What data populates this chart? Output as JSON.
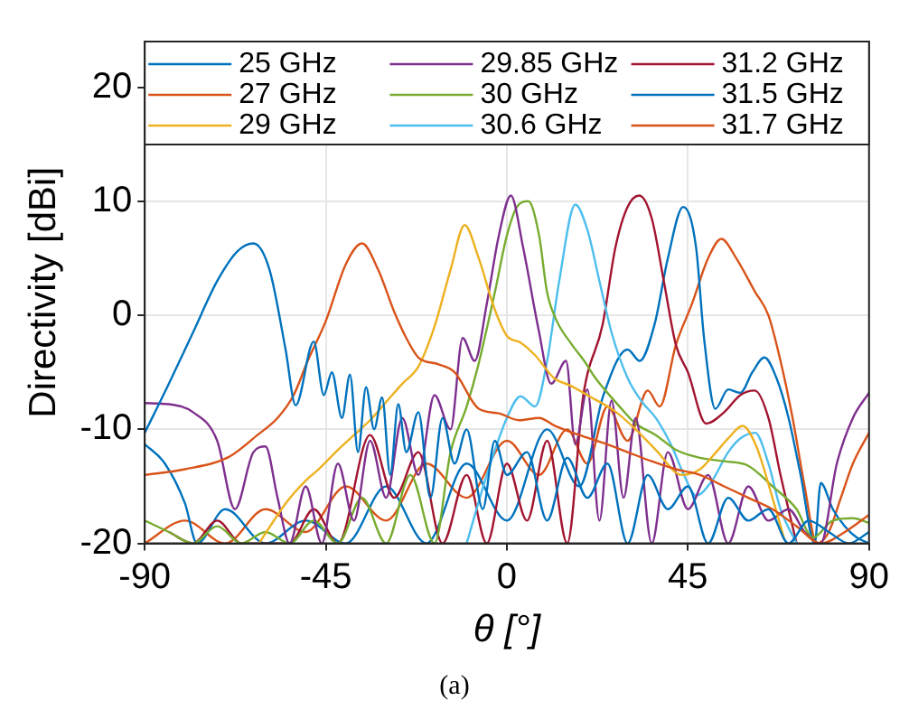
{
  "chart_data": {
    "type": "line",
    "xlabel": "θ [°]",
    "ylabel": "Directivity [dBi]",
    "annotations": [
      "(a)"
    ],
    "xlim": [
      -90,
      90
    ],
    "xticks": [
      -90,
      -45,
      0,
      45,
      90
    ],
    "ylim": [
      -20,
      24
    ],
    "yticks": [
      -20,
      -10,
      0,
      10,
      20
    ],
    "grid": true,
    "legend": "top",
    "marker": "none",
    "line_style": "solid",
    "series": [
      {
        "name": "25 GHz",
        "color": "#0072bd",
        "x": [
          -90,
          -84,
          -78,
          -72,
          -67,
          -63,
          -59,
          -55,
          -52.5,
          -48,
          -45.5,
          -43.5,
          -41,
          -39,
          -37,
          -35,
          -33,
          -31,
          -29,
          -27,
          -25,
          -22,
          -19,
          -16,
          -13,
          -10,
          -6,
          -3,
          0,
          5,
          10,
          15,
          20,
          25,
          30,
          35,
          40,
          45,
          50,
          55,
          60,
          65,
          70,
          75,
          80,
          85,
          90
        ],
        "values": [
          -10.3,
          -6,
          -1.5,
          3,
          5.6,
          6.3,
          4,
          -3,
          -7.9,
          -2.3,
          -7,
          -5,
          -9,
          -5.2,
          -12,
          -6.3,
          -10,
          -7.2,
          -14,
          -7.8,
          -12,
          -8.5,
          -16,
          -9,
          -13,
          -10,
          -17,
          -11,
          -14,
          -12,
          -18,
          -12.5,
          -16,
          -13,
          -20,
          -14,
          -17,
          -15,
          -20,
          -16,
          -18,
          -17,
          -20,
          -18,
          -19,
          -20,
          -19
        ]
      },
      {
        "name": "27 GHz",
        "color": "#d95319",
        "x": [
          -90,
          -80,
          -69,
          -62,
          -57,
          -53,
          -49.5,
          -45,
          -40,
          -36,
          -32,
          -28,
          -25,
          -22,
          -17,
          -13,
          -7,
          -2,
          3,
          8,
          12,
          18,
          24,
          30,
          36,
          42,
          48,
          54,
          60,
          66,
          72,
          78,
          84,
          90
        ],
        "values": [
          -14,
          -13.5,
          -12.4,
          -10.5,
          -9,
          -7,
          -4,
          -0.5,
          4.5,
          6.3,
          4,
          0.3,
          -2,
          -3.7,
          -4.3,
          -5,
          -8.2,
          -8.6,
          -9.2,
          -9,
          -9.7,
          -10.5,
          -11.2,
          -12,
          -12.8,
          -13.5,
          -14,
          -15,
          -16,
          -17,
          -18.5,
          -20,
          -19,
          -17.5
        ]
      },
      {
        "name": "29 GHz",
        "color": "#edb120",
        "x": [
          -61.6,
          -55,
          -50,
          -46.5,
          -42,
          -38,
          -34,
          -30,
          -26,
          -22,
          -18,
          -14,
          -10.5,
          -7,
          -3,
          0,
          3.4,
          7,
          11.7,
          16,
          21,
          26.8,
          32,
          37,
          43.5,
          48,
          52,
          55,
          58.6,
          62,
          66,
          69
        ],
        "values": [
          -20,
          -16.5,
          -14.5,
          -13.4,
          -11.8,
          -10.5,
          -9.2,
          -7.6,
          -6,
          -4.5,
          -1,
          4,
          7.9,
          5,
          0.5,
          -1.8,
          -2.4,
          -3.5,
          -5.5,
          -6.2,
          -7.2,
          -8.4,
          -10,
          -11.8,
          -14,
          -13.5,
          -12,
          -10.8,
          -9.7,
          -11.5,
          -16,
          -19.7
        ]
      },
      {
        "name": "29.85 GHz",
        "color": "#7e2f8e",
        "x": [
          -90,
          -84,
          -78,
          -72,
          -67.6,
          -63,
          -60,
          -57,
          -54,
          -50,
          -46,
          -42,
          -38,
          -34,
          -30,
          -26,
          -22,
          -18,
          -14,
          -11,
          -8,
          -5,
          -2,
          1,
          4,
          7.9,
          11,
          14.7,
          17,
          20,
          23,
          26,
          29,
          32,
          36,
          40,
          45,
          50,
          55,
          60,
          65,
          70,
          74,
          78,
          82,
          86,
          90
        ],
        "values": [
          -7.7,
          -7.8,
          -8.5,
          -11,
          -17,
          -12,
          -11.5,
          -16,
          -20,
          -15,
          -20,
          -13,
          -18,
          -11,
          -16,
          -9,
          -14,
          -7,
          -10,
          -2,
          -4,
          1,
          7,
          10.5,
          6,
          -1.3,
          -6,
          -4,
          -11.3,
          -6.5,
          -18,
          -7.5,
          -16,
          -9,
          -20,
          -12,
          -17,
          -14,
          -20,
          -15,
          -18,
          -17,
          -19,
          -20,
          -13,
          -9,
          -6.8
        ]
      },
      {
        "name": "30 GHz",
        "color": "#77ac30",
        "x": [
          -90,
          -84,
          -78,
          -72,
          -66,
          -60,
          -54,
          -48,
          -42,
          -36,
          -30,
          -24,
          -18,
          -14,
          -10,
          -7.2,
          -3,
          0,
          2.5,
          5.3,
          8,
          10,
          12.4,
          16,
          19.2,
          22,
          24.5,
          28,
          32,
          37,
          42,
          48,
          54,
          60,
          66,
          72,
          76,
          81,
          86,
          90
        ],
        "values": [
          -18,
          -19,
          -20,
          -18.5,
          -20,
          -19,
          -20,
          -18,
          -20,
          -16,
          -20,
          -14,
          -20,
          -12,
          -8,
          -4.5,
          2,
          7,
          9.5,
          10,
          7,
          2,
          -0.5,
          -2.5,
          -4,
          -5.5,
          -6.6,
          -8,
          -9.5,
          -10.5,
          -11.8,
          -12.5,
          -12.8,
          -13.2,
          -15,
          -17,
          -19.5,
          -18,
          -17.8,
          -18.2
        ]
      },
      {
        "name": "30.6 GHz",
        "color": "#4dbeee",
        "x": [
          -10,
          -5,
          0,
          3.4,
          7,
          10,
          13,
          17,
          20,
          23,
          26,
          30,
          33.6,
          37,
          41,
          44,
          47,
          51,
          55,
          58,
          61.7,
          65,
          68,
          72
        ],
        "values": [
          -20,
          -14,
          -9,
          -7.1,
          -8,
          -4,
          3,
          9.7,
          7.5,
          3,
          -1.5,
          -5.5,
          -7.6,
          -9,
          -11.5,
          -14,
          -15.8,
          -14.5,
          -12,
          -10.8,
          -10.3,
          -13,
          -17,
          -20
        ]
      },
      {
        "name": "31.2 GHz",
        "color": "#a2142f",
        "x": [
          -84,
          -78,
          -72,
          -66,
          -54,
          -48,
          -42,
          -34,
          -28,
          -22,
          -16,
          -10,
          -5,
          0,
          5,
          10,
          15,
          19,
          23.8,
          27,
          30,
          32.9,
          36,
          39,
          42,
          45,
          49.5,
          54,
          58,
          61.6,
          65,
          68,
          72
        ],
        "values": [
          -19,
          -20,
          -18,
          -20,
          -20,
          -17,
          -20,
          -10.5,
          -16,
          -12,
          -20,
          -14,
          -20,
          -13,
          -18,
          -11,
          -20,
          -7,
          -0.8,
          6,
          9.5,
          10.5,
          8.5,
          3,
          -2.6,
          -5,
          -9.5,
          -8.5,
          -7,
          -6.6,
          -9,
          -14,
          -20
        ]
      },
      {
        "name": "31.5 GHz",
        "color": "#0072bd",
        "x": [
          -90,
          -85,
          -80,
          -77,
          -70,
          -60,
          -50,
          -40,
          -30,
          -20,
          -10,
          0,
          10,
          18,
          24,
          30,
          33,
          36.7,
          40,
          43.8,
          47,
          49,
          51.8,
          55,
          58,
          61,
          64,
          67,
          70,
          73,
          76.5,
          78,
          81,
          84,
          87,
          90
        ],
        "values": [
          -11.3,
          -13,
          -16.5,
          -20,
          -17,
          -20,
          -18,
          -20,
          -15,
          -20,
          -13,
          -18,
          -10,
          -15,
          -7,
          -3,
          -4,
          -0.8,
          5,
          9.5,
          6,
          -2,
          -8.2,
          -6.5,
          -6.8,
          -5,
          -3.7,
          -5.5,
          -9,
          -14,
          -20,
          -14.7,
          -17,
          -18.5,
          -19.5,
          -20
        ]
      },
      {
        "name": "31.7 GHz",
        "color": "#d95319",
        "x": [
          -90,
          -80,
          -70,
          -60,
          -50,
          -40,
          -30,
          -20,
          -10,
          0,
          8,
          15,
          20,
          25,
          30,
          35,
          38,
          42,
          46,
          50,
          53.3,
          57,
          61.6,
          65,
          68,
          71,
          74,
          77,
          80,
          83,
          86,
          90
        ],
        "values": [
          -20,
          -18,
          -20,
          -17,
          -19,
          -15,
          -18,
          -13,
          -16,
          -11,
          -14,
          -10,
          -13,
          -8,
          -11,
          -6.6,
          -8,
          -2.6,
          1,
          5,
          6.7,
          5,
          2.1,
          0,
          -4,
          -9,
          -15,
          -20,
          -19,
          -16,
          -13,
          -10.3
        ]
      }
    ]
  }
}
